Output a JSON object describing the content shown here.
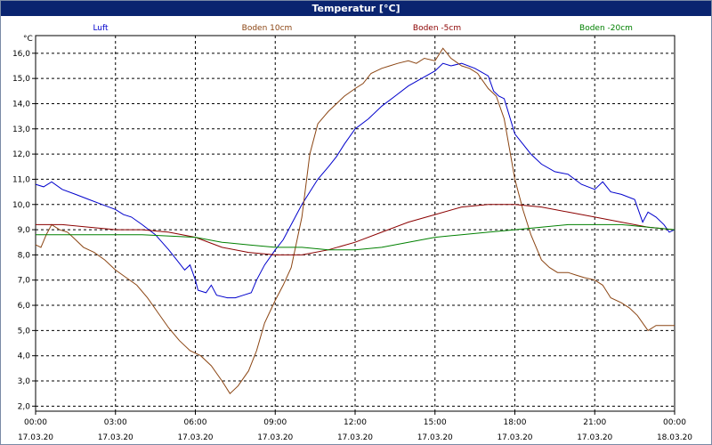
{
  "window": {
    "title": "Temperatur [°C]"
  },
  "chart_data": {
    "type": "line",
    "title": "Temperatur [°C]",
    "ylabel": "°C",
    "xlabel": "",
    "ylim": [
      1.8,
      16.7
    ],
    "xlim": [
      0,
      24
    ],
    "grid": true,
    "legend_position": "top",
    "y_ticks": [
      2.0,
      3.0,
      4.0,
      5.0,
      6.0,
      7.0,
      8.0,
      9.0,
      10.0,
      11.0,
      12.0,
      13.0,
      14.0,
      15.0,
      16.0
    ],
    "y_tick_labels": [
      "2,0",
      "3,0",
      "4,0",
      "5,0",
      "6,0",
      "7,0",
      "8,0",
      "9,0",
      "10,0",
      "11,0",
      "12,0",
      "13,0",
      "14,0",
      "15,0",
      "16,0"
    ],
    "x_ticks": [
      0,
      3,
      6,
      9,
      12,
      15,
      18,
      21,
      24
    ],
    "x_tick_labels": [
      {
        "time": "00:00",
        "date": "17.03.20"
      },
      {
        "time": "03:00",
        "date": "17.03.20"
      },
      {
        "time": "06:00",
        "date": "17.03.20"
      },
      {
        "time": "09:00",
        "date": "17.03.20"
      },
      {
        "time": "12:00",
        "date": "17.03.20"
      },
      {
        "time": "15:00",
        "date": "17.03.20"
      },
      {
        "time": "18:00",
        "date": "17.03.20"
      },
      {
        "time": "21:00",
        "date": "17.03.20"
      },
      {
        "time": "00:00",
        "date": "18.03.20"
      }
    ],
    "series": [
      {
        "name": "Luft",
        "color": "#0000cc",
        "points": [
          [
            0,
            10.8
          ],
          [
            0.3,
            10.7
          ],
          [
            0.6,
            10.9
          ],
          [
            1,
            10.6
          ],
          [
            1.5,
            10.4
          ],
          [
            2,
            10.2
          ],
          [
            2.5,
            10.0
          ],
          [
            3,
            9.8
          ],
          [
            3.3,
            9.6
          ],
          [
            3.6,
            9.5
          ],
          [
            4,
            9.2
          ],
          [
            4.5,
            8.8
          ],
          [
            5,
            8.2
          ],
          [
            5.3,
            7.8
          ],
          [
            5.6,
            7.4
          ],
          [
            5.8,
            7.6
          ],
          [
            6,
            7.0
          ],
          [
            6.1,
            6.6
          ],
          [
            6.4,
            6.5
          ],
          [
            6.6,
            6.8
          ],
          [
            6.8,
            6.4
          ],
          [
            7.2,
            6.3
          ],
          [
            7.5,
            6.3
          ],
          [
            7.8,
            6.4
          ],
          [
            8.1,
            6.5
          ],
          [
            8.3,
            7.0
          ],
          [
            8.6,
            7.6
          ],
          [
            9,
            8.2
          ],
          [
            9.3,
            8.6
          ],
          [
            9.6,
            9.2
          ],
          [
            10,
            10.0
          ],
          [
            10.3,
            10.5
          ],
          [
            10.6,
            11.0
          ],
          [
            11,
            11.5
          ],
          [
            11.3,
            11.9
          ],
          [
            11.6,
            12.4
          ],
          [
            12,
            13.0
          ],
          [
            12.5,
            13.4
          ],
          [
            13,
            13.9
          ],
          [
            13.5,
            14.3
          ],
          [
            14,
            14.7
          ],
          [
            14.5,
            15.0
          ],
          [
            15,
            15.3
          ],
          [
            15.3,
            15.6
          ],
          [
            15.6,
            15.5
          ],
          [
            16,
            15.6
          ],
          [
            16.5,
            15.4
          ],
          [
            17,
            15.1
          ],
          [
            17.2,
            14.5
          ],
          [
            17.4,
            14.3
          ],
          [
            17.6,
            14.2
          ],
          [
            18,
            12.8
          ],
          [
            18.3,
            12.4
          ],
          [
            18.6,
            12.0
          ],
          [
            19,
            11.6
          ],
          [
            19.5,
            11.3
          ],
          [
            20,
            11.2
          ],
          [
            20.5,
            10.8
          ],
          [
            21,
            10.6
          ],
          [
            21.3,
            10.9
          ],
          [
            21.6,
            10.5
          ],
          [
            22,
            10.4
          ],
          [
            22.5,
            10.2
          ],
          [
            22.8,
            9.3
          ],
          [
            23,
            9.7
          ],
          [
            23.3,
            9.5
          ],
          [
            23.6,
            9.2
          ],
          [
            23.8,
            8.9
          ],
          [
            24,
            9.0
          ]
        ]
      },
      {
        "name": "Boden 10cm",
        "color": "#8b4513",
        "points": [
          [
            0,
            8.4
          ],
          [
            0.2,
            8.3
          ],
          [
            0.4,
            8.8
          ],
          [
            0.6,
            9.2
          ],
          [
            0.9,
            9.0
          ],
          [
            1.2,
            8.9
          ],
          [
            1.5,
            8.6
          ],
          [
            1.8,
            8.3
          ],
          [
            2.2,
            8.1
          ],
          [
            2.6,
            7.8
          ],
          [
            3,
            7.4
          ],
          [
            3.4,
            7.1
          ],
          [
            3.8,
            6.8
          ],
          [
            4.2,
            6.3
          ],
          [
            4.6,
            5.7
          ],
          [
            5,
            5.1
          ],
          [
            5.4,
            4.6
          ],
          [
            5.8,
            4.2
          ],
          [
            6.2,
            4.0
          ],
          [
            6.6,
            3.6
          ],
          [
            7,
            3.0
          ],
          [
            7.3,
            2.5
          ],
          [
            7.6,
            2.8
          ],
          [
            8,
            3.4
          ],
          [
            8.3,
            4.2
          ],
          [
            8.6,
            5.3
          ],
          [
            9,
            6.2
          ],
          [
            9.3,
            6.8
          ],
          [
            9.6,
            7.5
          ],
          [
            10,
            9.5
          ],
          [
            10.3,
            12.0
          ],
          [
            10.6,
            13.2
          ],
          [
            11,
            13.7
          ],
          [
            11.3,
            14.0
          ],
          [
            11.6,
            14.3
          ],
          [
            12,
            14.6
          ],
          [
            12.3,
            14.8
          ],
          [
            12.6,
            15.2
          ],
          [
            13,
            15.4
          ],
          [
            13.3,
            15.5
          ],
          [
            13.6,
            15.6
          ],
          [
            14,
            15.7
          ],
          [
            14.3,
            15.6
          ],
          [
            14.6,
            15.8
          ],
          [
            15,
            15.7
          ],
          [
            15.3,
            16.2
          ],
          [
            15.6,
            15.8
          ],
          [
            16,
            15.5
          ],
          [
            16.3,
            15.4
          ],
          [
            16.6,
            15.2
          ],
          [
            17,
            14.6
          ],
          [
            17.3,
            14.3
          ],
          [
            17.6,
            13.4
          ],
          [
            18,
            11.0
          ],
          [
            18.3,
            9.8
          ],
          [
            18.6,
            8.8
          ],
          [
            19,
            7.8
          ],
          [
            19.3,
            7.5
          ],
          [
            19.6,
            7.3
          ],
          [
            20,
            7.3
          ],
          [
            20.3,
            7.2
          ],
          [
            20.6,
            7.1
          ],
          [
            21,
            7.0
          ],
          [
            21.3,
            6.8
          ],
          [
            21.6,
            6.3
          ],
          [
            22,
            6.1
          ],
          [
            22.3,
            5.9
          ],
          [
            22.6,
            5.6
          ],
          [
            23,
            5.0
          ],
          [
            23.3,
            5.2
          ],
          [
            23.6,
            5.2
          ],
          [
            24,
            5.2
          ]
        ]
      },
      {
        "name": "Boden -5cm",
        "color": "#8b0000",
        "points": [
          [
            0,
            9.2
          ],
          [
            1,
            9.2
          ],
          [
            2,
            9.1
          ],
          [
            3,
            9.0
          ],
          [
            4,
            9.0
          ],
          [
            5,
            8.9
          ],
          [
            6,
            8.7
          ],
          [
            7,
            8.3
          ],
          [
            8,
            8.1
          ],
          [
            9,
            8.0
          ],
          [
            10,
            8.0
          ],
          [
            11,
            8.2
          ],
          [
            12,
            8.5
          ],
          [
            13,
            8.9
          ],
          [
            14,
            9.3
          ],
          [
            15,
            9.6
          ],
          [
            16,
            9.9
          ],
          [
            17,
            10.0
          ],
          [
            18,
            10.0
          ],
          [
            19,
            9.9
          ],
          [
            20,
            9.7
          ],
          [
            21,
            9.5
          ],
          [
            22,
            9.3
          ],
          [
            23,
            9.1
          ],
          [
            24,
            9.0
          ]
        ]
      },
      {
        "name": "Boden -20cm",
        "color": "#008000",
        "points": [
          [
            0,
            8.8
          ],
          [
            2,
            8.8
          ],
          [
            4,
            8.8
          ],
          [
            6,
            8.7
          ],
          [
            7,
            8.5
          ],
          [
            8,
            8.4
          ],
          [
            9,
            8.3
          ],
          [
            10,
            8.3
          ],
          [
            11,
            8.2
          ],
          [
            12,
            8.2
          ],
          [
            13,
            8.3
          ],
          [
            14,
            8.5
          ],
          [
            15,
            8.7
          ],
          [
            16,
            8.8
          ],
          [
            17,
            8.9
          ],
          [
            18,
            9.0
          ],
          [
            19,
            9.1
          ],
          [
            20,
            9.2
          ],
          [
            21,
            9.2
          ],
          [
            22,
            9.2
          ],
          [
            23,
            9.1
          ],
          [
            24,
            9.0
          ]
        ]
      }
    ]
  }
}
